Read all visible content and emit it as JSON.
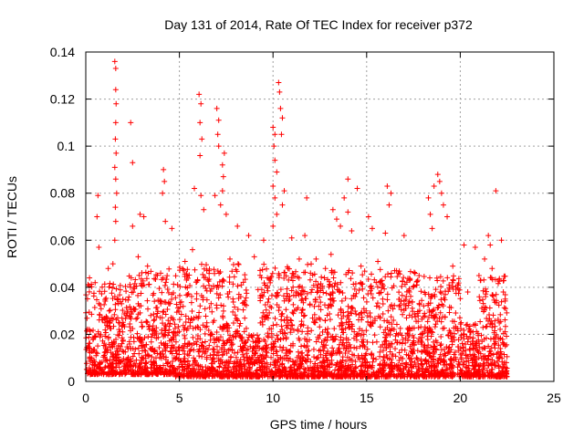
{
  "chart_data": {
    "type": "scatter",
    "title": "Day 131 of 2014, Rate Of TEC Index for receiver p372",
    "xlabel": "GPS time / hours",
    "ylabel": "ROTI / TECUs",
    "xlim": [
      0,
      25
    ],
    "ylim": [
      0,
      0.14
    ],
    "x_ticks": [
      0,
      5,
      10,
      15,
      20,
      25
    ],
    "x_tick_labels": [
      "0",
      "5",
      "10",
      "15",
      "20",
      "25"
    ],
    "y_ticks": [
      0,
      0.02,
      0.04,
      0.06,
      0.08,
      0.1,
      0.12,
      0.14
    ],
    "y_tick_labels": [
      "0",
      "0.02",
      "0.04",
      "0.06",
      "0.08",
      "0.1",
      "0.12",
      "0.14"
    ],
    "grid": true,
    "marker": "+",
    "marker_color": "#ff0000",
    "series": [
      {
        "name": "ROTI",
        "points": [
          [
            1.55,
            0.136
          ],
          [
            1.6,
            0.133
          ],
          [
            1.6,
            0.124
          ],
          [
            1.62,
            0.118
          ],
          [
            1.6,
            0.11
          ],
          [
            1.58,
            0.103
          ],
          [
            1.62,
            0.097
          ],
          [
            1.55,
            0.091
          ],
          [
            1.6,
            0.086
          ],
          [
            1.65,
            0.08
          ],
          [
            1.58,
            0.074
          ],
          [
            1.6,
            0.068
          ],
          [
            1.55,
            0.06
          ],
          [
            1.45,
            0.05
          ],
          [
            2.4,
            0.11
          ],
          [
            2.5,
            0.093
          ],
          [
            0.65,
            0.079
          ],
          [
            0.6,
            0.07
          ],
          [
            0.7,
            0.057
          ],
          [
            2.9,
            0.071
          ],
          [
            3.1,
            0.07
          ],
          [
            2.5,
            0.066
          ],
          [
            4.15,
            0.09
          ],
          [
            4.2,
            0.085
          ],
          [
            4.1,
            0.08
          ],
          [
            4.25,
            0.068
          ],
          [
            4.6,
            0.065
          ],
          [
            5.8,
            0.082
          ],
          [
            6.05,
            0.122
          ],
          [
            6.15,
            0.118
          ],
          [
            6.1,
            0.11
          ],
          [
            6.2,
            0.103
          ],
          [
            6.1,
            0.096
          ],
          [
            6.15,
            0.079
          ],
          [
            6.3,
            0.073
          ],
          [
            7.0,
            0.116
          ],
          [
            7.1,
            0.111
          ],
          [
            7.05,
            0.105
          ],
          [
            7.1,
            0.1
          ],
          [
            7.4,
            0.097
          ],
          [
            7.3,
            0.092
          ],
          [
            7.35,
            0.087
          ],
          [
            7.3,
            0.081
          ],
          [
            7.2,
            0.075
          ],
          [
            6.9,
            0.079
          ],
          [
            7.5,
            0.071
          ],
          [
            8.1,
            0.066
          ],
          [
            8.7,
            0.062
          ],
          [
            9.0,
            0.053
          ],
          [
            9.5,
            0.06
          ],
          [
            10.0,
            0.108
          ],
          [
            10.1,
            0.105
          ],
          [
            10.05,
            0.1
          ],
          [
            10.1,
            0.094
          ],
          [
            10.2,
            0.089
          ],
          [
            10.0,
            0.083
          ],
          [
            10.1,
            0.078
          ],
          [
            10.2,
            0.071
          ],
          [
            10.0,
            0.066
          ],
          [
            10.3,
            0.127
          ],
          [
            10.35,
            0.123
          ],
          [
            10.4,
            0.116
          ],
          [
            10.5,
            0.112
          ],
          [
            10.45,
            0.105
          ],
          [
            10.6,
            0.081
          ],
          [
            10.5,
            0.075
          ],
          [
            11.0,
            0.061
          ],
          [
            11.8,
            0.078
          ],
          [
            11.7,
            0.062
          ],
          [
            12.3,
            0.052
          ],
          [
            13.2,
            0.073
          ],
          [
            13.4,
            0.069
          ],
          [
            13.6,
            0.066
          ],
          [
            13.8,
            0.078
          ],
          [
            14.0,
            0.072
          ],
          [
            14.2,
            0.064
          ],
          [
            14.0,
            0.086
          ],
          [
            14.5,
            0.082
          ],
          [
            15.1,
            0.07
          ],
          [
            15.3,
            0.065
          ],
          [
            16.1,
            0.083
          ],
          [
            16.3,
            0.08
          ],
          [
            16.2,
            0.075
          ],
          [
            16.0,
            0.063
          ],
          [
            17.0,
            0.062
          ],
          [
            18.3,
            0.078
          ],
          [
            18.4,
            0.071
          ],
          [
            18.5,
            0.065
          ],
          [
            18.8,
            0.088
          ],
          [
            18.9,
            0.085
          ],
          [
            19.0,
            0.08
          ],
          [
            19.1,
            0.075
          ],
          [
            19.3,
            0.07
          ],
          [
            18.6,
            0.083
          ],
          [
            20.2,
            0.058
          ],
          [
            20.8,
            0.057
          ],
          [
            21.5,
            0.062
          ],
          [
            21.6,
            0.058
          ],
          [
            21.9,
            0.081
          ],
          [
            22.2,
            0.06
          ],
          [
            22.3,
            0.038
          ],
          [
            22.4,
            0.035
          ],
          [
            0.2,
            0.044
          ],
          [
            0.5,
            0.042
          ],
          [
            1.2,
            0.048
          ],
          [
            2.8,
            0.053
          ],
          [
            3.3,
            0.049
          ],
          [
            4.0,
            0.046
          ],
          [
            5.3,
            0.051
          ],
          [
            5.7,
            0.056
          ],
          [
            6.6,
            0.047
          ],
          [
            7.7,
            0.052
          ],
          [
            8.3,
            0.041
          ],
          [
            9.2,
            0.039
          ],
          [
            9.7,
            0.044
          ],
          [
            10.8,
            0.048
          ],
          [
            11.4,
            0.052
          ],
          [
            12.0,
            0.046
          ],
          [
            12.8,
            0.048
          ],
          [
            13.1,
            0.054
          ],
          [
            14.7,
            0.049
          ],
          [
            15.6,
            0.051
          ],
          [
            16.6,
            0.047
          ],
          [
            17.3,
            0.043
          ],
          [
            17.8,
            0.045
          ],
          [
            19.6,
            0.049
          ],
          [
            20.4,
            0.038
          ],
          [
            21.0,
            0.045
          ],
          [
            21.3,
            0.052
          ],
          [
            21.7,
            0.048
          ]
        ],
        "dense_bands": [
          {
            "x_range": [
              0.0,
              2.3
            ],
            "y_range": [
              0.003,
              0.042
            ]
          },
          {
            "x_range": [
              2.3,
              4.8
            ],
            "y_range": [
              0.003,
              0.048
            ]
          },
          {
            "x_range": [
              4.8,
              8.6
            ],
            "y_range": [
              0.002,
              0.05
            ]
          },
          {
            "x_range": [
              8.6,
              9.3
            ],
            "y_range": [
              0.002,
              0.02
            ]
          },
          {
            "x_range": [
              9.3,
              12.4
            ],
            "y_range": [
              0.002,
              0.05
            ]
          },
          {
            "x_range": [
              12.4,
              17.6
            ],
            "y_range": [
              0.002,
              0.048
            ]
          },
          {
            "x_range": [
              17.6,
              20.0
            ],
            "y_range": [
              0.002,
              0.045
            ]
          },
          {
            "x_range": [
              20.0,
              21.0
            ],
            "y_range": [
              0.002,
              0.025
            ]
          },
          {
            "x_range": [
              21.0,
              22.5
            ],
            "y_range": [
              0.002,
              0.045
            ]
          }
        ]
      }
    ]
  }
}
